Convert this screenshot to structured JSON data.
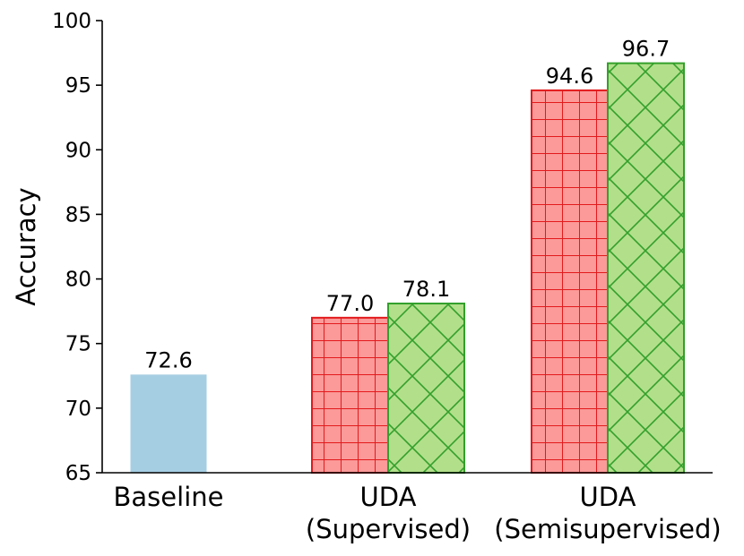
{
  "chart_data": {
    "type": "bar",
    "title": "",
    "xlabel": "",
    "ylabel": "Accuracy",
    "ylim": [
      65,
      100
    ],
    "yticks": [
      "65",
      "70",
      "75",
      "80",
      "85",
      "90",
      "95",
      "100"
    ],
    "categories": [
      [
        "Baseline"
      ],
      [
        "UDA",
        "(Supervised)"
      ],
      [
        "UDA",
        "(Semisupervised)"
      ]
    ],
    "bars": [
      {
        "category_index": 0,
        "slot": "center",
        "value": 72.6,
        "label": "72.6",
        "fill": "#a6cee3",
        "edge": "#a6cee3",
        "hatch": "none"
      },
      {
        "category_index": 1,
        "slot": "left",
        "value": 77.0,
        "label": "77.0",
        "fill": "#fb9a99",
        "edge": "#e31a1c",
        "hatch": "grid"
      },
      {
        "category_index": 1,
        "slot": "right",
        "value": 78.1,
        "label": "78.1",
        "fill": "#b2df8a",
        "edge": "#33a02c",
        "hatch": "diamond"
      },
      {
        "category_index": 2,
        "slot": "left",
        "value": 94.6,
        "label": "94.6",
        "fill": "#fb9a99",
        "edge": "#e31a1c",
        "hatch": "grid"
      },
      {
        "category_index": 2,
        "slot": "right",
        "value": 96.7,
        "label": "96.7",
        "fill": "#b2df8a",
        "edge": "#33a02c",
        "hatch": "diamond"
      }
    ]
  }
}
